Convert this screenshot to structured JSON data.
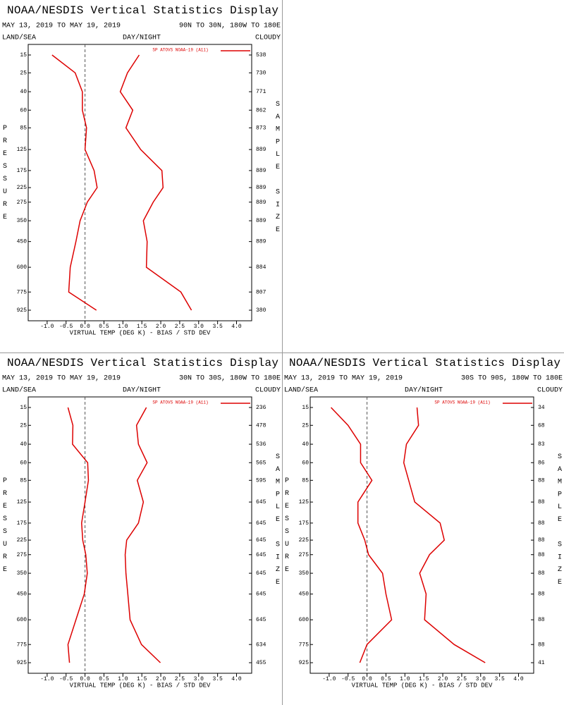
{
  "chart_data": [
    {
      "type": "line",
      "title": "NOAA/NESDIS Vertical Statistics Display",
      "subtitle": "MAY 13, 2019 TO MAY 19, 2019",
      "region": "90N TO 30N, 180W TO 180E",
      "land_sea": "LAND/SEA",
      "day_night": "DAY/NIGHT",
      "cloud": "CLOUDY",
      "legend": "SP ATOVS NOAA-19 (A11)",
      "ylabel": "PRESSURE",
      "y2label": "SAMPLE SIZE",
      "xlabel": "VIRTUAL TEMP (DEG K) - BIAS / STD DEV",
      "y": [
        15,
        25,
        40,
        60,
        85,
        125,
        175,
        225,
        275,
        350,
        450,
        600,
        775,
        925
      ],
      "sample_size": [
        538,
        730,
        771,
        862,
        873,
        889,
        889,
        889,
        889,
        889,
        889,
        884,
        807,
        380
      ],
      "xlim": [
        -1.5,
        4.4
      ],
      "xticks": [
        {
          "value": -1,
          "label": "-1.0"
        },
        -0.5,
        {
          "value": 0,
          "label": "0.0"
        },
        0.5,
        {
          "value": 1,
          "label": "1.0"
        },
        1.5,
        {
          "value": 2,
          "label": "2.0"
        },
        2.5,
        {
          "value": 3,
          "label": "3.0"
        },
        3.5,
        {
          "value": 4,
          "label": "4.0"
        }
      ],
      "series": [
        {
          "color": "#dd0000",
          "values": [
            -0.87,
            -0.26,
            -0.07,
            -0.07,
            0.04,
            0.0,
            0.24,
            0.32,
            0.06,
            -0.13,
            -0.24,
            -0.39,
            -0.43,
            0.3
          ]
        },
        {
          "color": "#dd0000",
          "values": [
            1.43,
            1.12,
            0.93,
            1.26,
            1.08,
            1.47,
            2.03,
            2.06,
            1.8,
            1.54,
            1.64,
            1.62,
            2.53,
            2.81
          ]
        }
      ]
    },
    {
      "type": "line",
      "title": "NOAA/NESDIS Vertical Statistics Display",
      "subtitle": "MAY 13, 2019 TO MAY 19, 2019",
      "region": "30N TO 30S, 180W TO 180E",
      "land_sea": "LAND/SEA",
      "day_night": "DAY/NIGHT",
      "cloud": "CLOUDY",
      "legend": "SP ATOVS NOAA-19 (A11)",
      "ylabel": "PRESSURE",
      "y2label": "SAMPLE SIZE",
      "xlabel": "VIRTUAL TEMP (DEG K) - BIAS / STD DEV",
      "y": [
        15,
        25,
        40,
        60,
        85,
        125,
        175,
        225,
        275,
        350,
        450,
        600,
        775,
        925
      ],
      "sample_size": [
        236,
        478,
        536,
        565,
        595,
        645,
        645,
        645,
        645,
        645,
        645,
        645,
        634,
        455
      ],
      "xlim": [
        -1.5,
        4.4
      ],
      "xticks": [
        {
          "value": -1,
          "label": "-1.0"
        },
        -0.5,
        {
          "value": 0,
          "label": "0.0"
        },
        0.5,
        {
          "value": 1,
          "label": "1.0"
        },
        1.5,
        {
          "value": 2,
          "label": "2.0"
        },
        2.5,
        {
          "value": 3,
          "label": "3.0"
        },
        3.5,
        {
          "value": 4,
          "label": "4.0"
        }
      ],
      "series": [
        {
          "color": "#dd0000",
          "values": [
            -0.45,
            -0.32,
            -0.33,
            0.07,
            0.09,
            0.0,
            -0.09,
            -0.06,
            0.02,
            0.06,
            -0.02,
            -0.24,
            -0.45,
            -0.41
          ]
        },
        {
          "color": "#dd0000",
          "values": [
            1.62,
            1.36,
            1.41,
            1.64,
            1.38,
            1.54,
            1.41,
            1.1,
            1.06,
            1.08,
            1.13,
            1.19,
            1.49,
            1.99
          ]
        }
      ]
    },
    {
      "type": "line",
      "title": "NOAA/NESDIS Vertical Statistics Display",
      "subtitle": "MAY 13, 2019 TO MAY 19, 2019",
      "region": "30S TO 90S, 180W TO 180E",
      "land_sea": "LAND/SEA",
      "day_night": "DAY/NIGHT",
      "cloud": "CLOUDY",
      "legend": "SP ATOVS NOAA-19 (A11)",
      "ylabel": "PRESSURE",
      "y2label": "SAMPLE SIZE",
      "xlabel": "VIRTUAL TEMP (DEG K) - BIAS / STD DEV",
      "y": [
        15,
        25,
        40,
        60,
        85,
        125,
        175,
        225,
        275,
        350,
        450,
        600,
        775,
        925
      ],
      "sample_size": [
        34,
        68,
        83,
        86,
        88,
        88,
        88,
        88,
        88,
        88,
        88,
        88,
        88,
        41
      ],
      "xlim": [
        -1.5,
        4.4
      ],
      "xticks": [
        {
          "value": -1,
          "label": "-1.0"
        },
        -0.5,
        {
          "value": 0,
          "label": "0.0"
        },
        0.5,
        {
          "value": 1,
          "label": "1.0"
        },
        1.5,
        {
          "value": 2,
          "label": "2.0"
        },
        2.5,
        {
          "value": 3,
          "label": "3.0"
        },
        3.5,
        {
          "value": 4,
          "label": "4.0"
        }
      ],
      "series": [
        {
          "color": "#dd0000",
          "values": [
            -0.95,
            -0.5,
            -0.17,
            -0.17,
            0.13,
            -0.24,
            -0.24,
            -0.06,
            0.04,
            0.41,
            0.5,
            0.65,
            0.0,
            -0.19
          ]
        },
        {
          "color": "#dd0000",
          "values": [
            1.32,
            1.36,
            1.04,
            0.97,
            1.1,
            1.26,
            1.93,
            2.04,
            1.65,
            1.39,
            1.56,
            1.52,
            2.3,
            3.12
          ]
        }
      ]
    }
  ]
}
